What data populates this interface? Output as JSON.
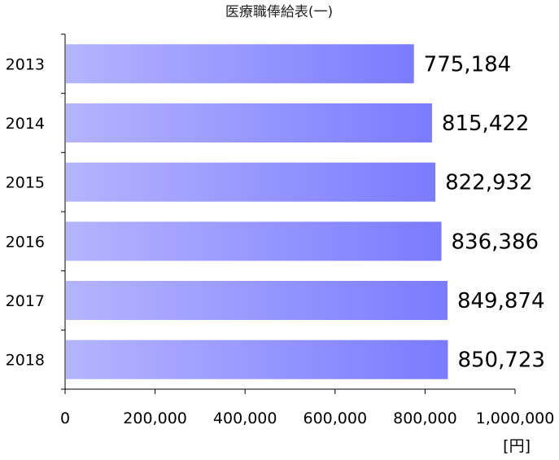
{
  "chart_data": {
    "type": "bar",
    "orientation": "horizontal",
    "title": "医療職俸給表(一)",
    "categories": [
      "2013",
      "2014",
      "2015",
      "2016",
      "2017",
      "2018"
    ],
    "values": [
      775184,
      815422,
      822932,
      836386,
      849874,
      850723
    ],
    "value_labels": [
      "775,184",
      "815,422",
      "822,932",
      "836,386",
      "849,874",
      "850,723"
    ],
    "xlim": [
      0,
      1000000
    ],
    "x_ticks": [
      0,
      200000,
      400000,
      600000,
      800000,
      1000000
    ],
    "x_tick_labels": [
      "0",
      "200,000",
      "400,000",
      "600,000",
      "800,000",
      "1,000,000"
    ],
    "xunit": "[円]",
    "grid": false,
    "legend": "none",
    "colors": {
      "bar_start": "#b4b4ff",
      "bar_end": "#7b7bff",
      "axis": "#000000"
    }
  }
}
